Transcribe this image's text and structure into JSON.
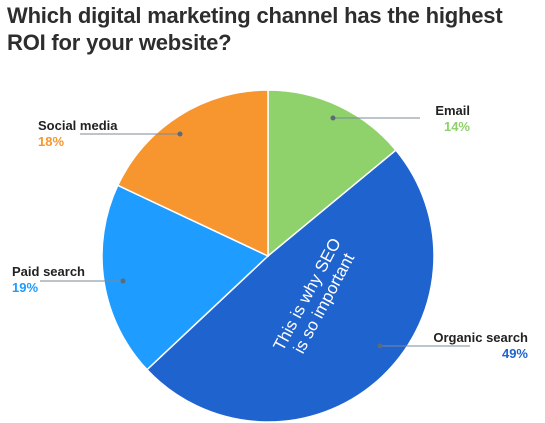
{
  "chart_data": {
    "type": "pie",
    "title": "Which digital marketing channel has the highest ROI for your website?",
    "categories": [
      "Email",
      "Organic search",
      "Paid search",
      "Social media"
    ],
    "values": [
      14,
      49,
      19,
      18
    ],
    "value_labels": [
      "14%",
      "49%",
      "19%",
      "18%"
    ],
    "colors": [
      "#8fd16a",
      "#1f63cf",
      "#1e9cff",
      "#f7962f"
    ],
    "start_angle_deg": 0,
    "direction": "clockwise",
    "annotation": {
      "lines": [
        "This is why SEO",
        "is so important"
      ],
      "slice": "Organic search"
    }
  }
}
